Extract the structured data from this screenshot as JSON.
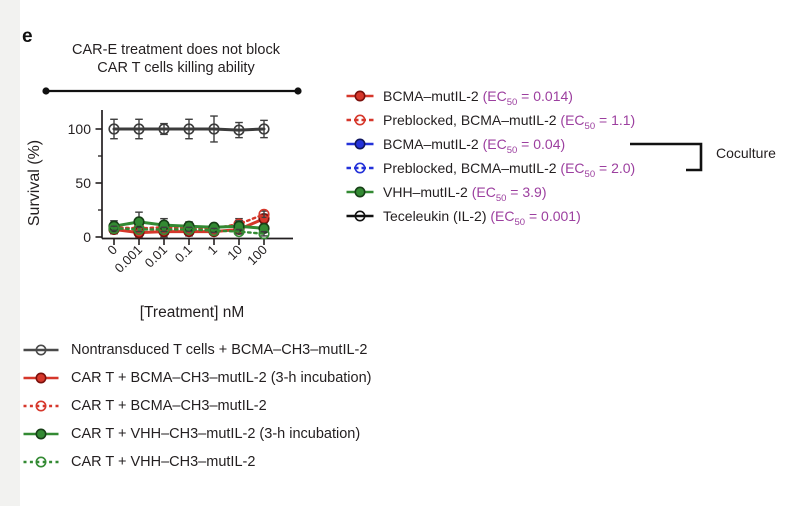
{
  "panel_label": "e",
  "annotation": {
    "line1": "CAR-E treatment does not block",
    "line2": "CAR T cells killing ability"
  },
  "colors": {
    "red": "#d6372b",
    "blue": "#2432d9",
    "green": "#338a33",
    "gray_series": "#3c3c3c",
    "black": "#111111",
    "ec50_text": "#9c3f9f",
    "errorbar": "#3e3e3e"
  },
  "chart_data": {
    "type": "line",
    "title": "CAR-E treatment does not block CAR T cells killing ability",
    "xlabel": "[Treatment] nM",
    "ylabel": "Survival (%)",
    "x_categories": [
      "0",
      "0.001",
      "0.01",
      "0.1",
      "1",
      "10",
      "100"
    ],
    "yticks": [
      0,
      50,
      100
    ],
    "yticks_minor": [
      25,
      75
    ],
    "ylim": [
      0,
      115
    ],
    "grid": false,
    "legend_position": "below",
    "series": [
      {
        "name": "Nontransduced T cells + BCMA–CH3–mutIL-2",
        "color": "#3c3c3c",
        "marker": "open",
        "line": "solid",
        "values": [
          100,
          100,
          100,
          100,
          100,
          99,
          100
        ],
        "err": [
          9,
          9,
          5,
          9,
          12,
          7,
          8
        ]
      },
      {
        "name": "CAR T + BCMA–CH3–mutIL-2 (3-h incubation)",
        "color": "#d6372b",
        "edge": "#7a100c",
        "marker": "filled",
        "line": "solid",
        "values": [
          7,
          4,
          5,
          5,
          5,
          7,
          17
        ],
        "err": [
          4,
          4,
          5,
          4,
          3,
          4,
          4
        ]
      },
      {
        "name": "CAR T + BCMA–CH3–mutIL-2",
        "color": "#d6372b",
        "marker": "open",
        "line": "dotted",
        "values": [
          9,
          8,
          9,
          8,
          8,
          12,
          21
        ],
        "err": [
          3,
          3,
          3,
          3,
          3,
          5,
          3
        ]
      },
      {
        "name": "CAR T + VHH–CH3–mutIL-2 (3-h incubation)",
        "color": "#338a33",
        "edge": "#173f17",
        "marker": "filled",
        "line": "solid",
        "values": [
          10,
          14,
          11,
          10,
          9,
          10,
          8
        ],
        "err": [
          5,
          9,
          6,
          4,
          3,
          5,
          3
        ]
      },
      {
        "name": "CAR T + VHH–CH3–mutIL-2",
        "color": "#338a33",
        "marker": "open",
        "line": "dotted",
        "values": [
          8,
          7,
          7,
          7,
          6,
          5,
          3
        ],
        "err": [
          2,
          2,
          2,
          2,
          2,
          2,
          2
        ]
      }
    ]
  },
  "right_legend": {
    "entries": [
      {
        "label": "BCMA–mutIL-2 ",
        "ec_prefix": "(EC",
        "ec_sub": "50",
        "ec_suffix": " = 0.014)",
        "color": "#d6372b",
        "edge": "#7a100c",
        "marker": "filled",
        "line": "solid"
      },
      {
        "label": "Preblocked, BCMA–mutIL-2 ",
        "ec_prefix": "(EC",
        "ec_sub": "50",
        "ec_suffix": " = 1.1)",
        "color": "#d6372b",
        "marker": "open",
        "line": "dashed"
      },
      {
        "label": "BCMA–mutIL-2 ",
        "ec_prefix": "(EC",
        "ec_sub": "50",
        "ec_suffix": " = 0.04)",
        "color": "#2432d9",
        "edge": "#10165e",
        "marker": "filled",
        "line": "solid"
      },
      {
        "label": "Preblocked, BCMA–mutIL-2 ",
        "ec_prefix": "(EC",
        "ec_sub": "50",
        "ec_suffix": " = 2.0)",
        "color": "#2432d9",
        "marker": "open",
        "line": "dashed"
      },
      {
        "label": "VHH–mutIL-2 ",
        "ec_prefix": "(EC",
        "ec_sub": "50",
        "ec_suffix": " = 3.9)",
        "color": "#338a33",
        "edge": "#173f17",
        "marker": "filled",
        "line": "solid"
      },
      {
        "label": "Teceleukin (IL-2) ",
        "ec_prefix": "(EC",
        "ec_sub": "50",
        "ec_suffix": " = 0.001)",
        "color": "#111111",
        "marker": "open",
        "line": "solid"
      }
    ]
  },
  "coculture": {
    "label": "Coculture"
  },
  "bottom_legend": {
    "entries": [
      {
        "label": "Nontransduced T cells + BCMA–CH3–mutIL-2",
        "color": "#4a4a4a",
        "marker": "open",
        "line": "solid"
      },
      {
        "label": "CAR T + BCMA–CH3–mutIL-2 (3-h incubation)",
        "color": "#d6372b",
        "edge": "#7a100c",
        "marker": "filled",
        "line": "solid"
      },
      {
        "label": "CAR T + BCMA–CH3–mutIL-2",
        "color": "#d6372b",
        "marker": "open",
        "line": "dotted"
      },
      {
        "label": "CAR T + VHH–CH3–mutIL-2 (3-h incubation)",
        "color": "#338a33",
        "edge": "#173f17",
        "marker": "filled",
        "line": "solid"
      },
      {
        "label": "CAR T + VHH–CH3–mutIL-2",
        "color": "#338a33",
        "marker": "open",
        "line": "dotted"
      }
    ]
  }
}
